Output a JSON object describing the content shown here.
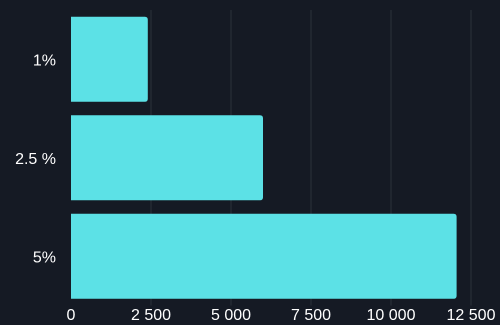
{
  "colors": {
    "background": "#151a24",
    "bar": "#5ce1e6",
    "gridline": "#2c313a",
    "text": "#ffffff"
  },
  "chart_data": {
    "type": "bar",
    "orientation": "horizontal",
    "categories": [
      "1%",
      "2.5 %",
      "5%"
    ],
    "values": [
      2400,
      6000,
      12050
    ],
    "x_tick_labels": [
      "0",
      "2 500",
      "5 000",
      "7 500",
      "10 000",
      "12 500"
    ],
    "x_ticks": [
      0,
      2500,
      5000,
      7500,
      10000,
      12500
    ],
    "xlim": [
      0,
      12500
    ],
    "grid": "vertical",
    "legend": "none",
    "title": "",
    "xlabel": "",
    "ylabel": ""
  }
}
